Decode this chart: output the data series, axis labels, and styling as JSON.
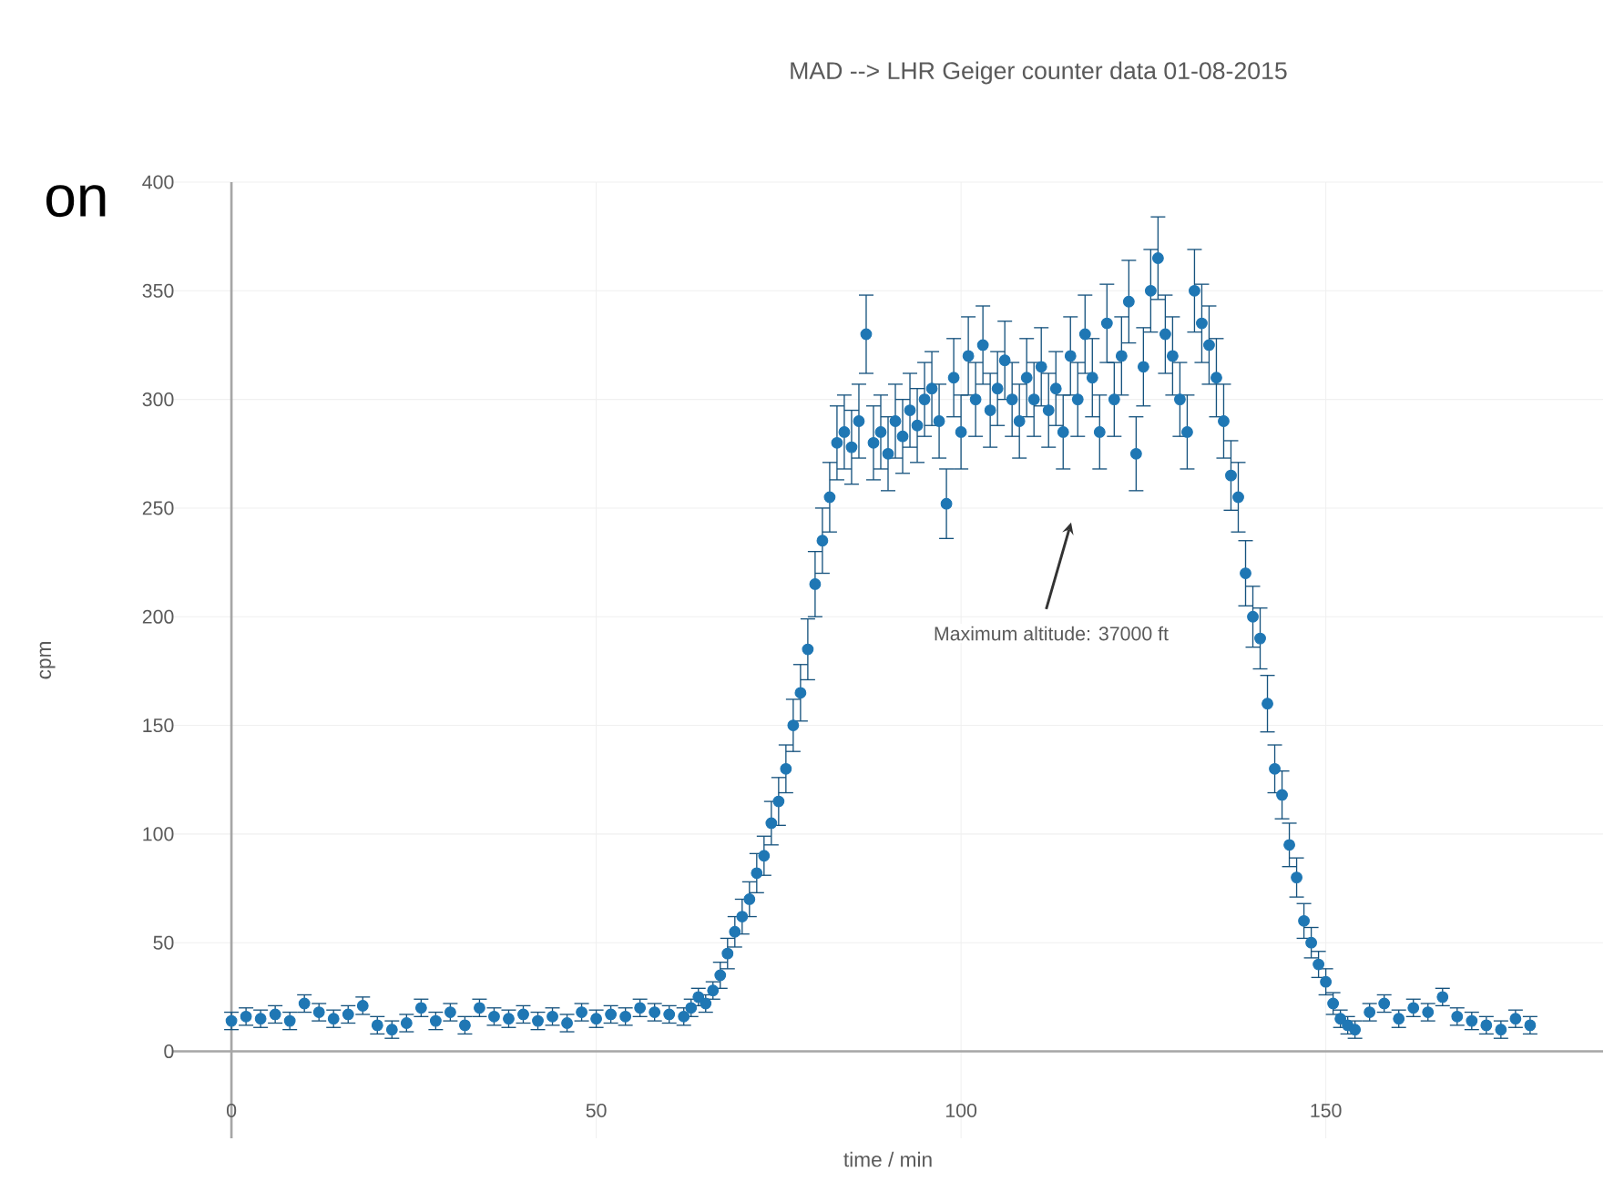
{
  "chart_data": {
    "type": "scatter",
    "title": "MAD --> LHR Geiger counter data 01-08-2015",
    "xlabel": "time / min",
    "ylabel": "cpm",
    "xlim": [
      -8,
      188
    ],
    "ylim": [
      -40,
      400
    ],
    "xticks": [
      0,
      50,
      100,
      150
    ],
    "yticks": [
      0,
      50,
      100,
      150,
      200,
      250,
      300,
      350,
      400
    ],
    "grid": true,
    "marker": "circle",
    "series": [
      {
        "color": "#1f77b4",
        "x": [
          0,
          2,
          4,
          6,
          8,
          10,
          12,
          14,
          16,
          18,
          20,
          22,
          24,
          26,
          28,
          30,
          32,
          34,
          36,
          38,
          40,
          42,
          44,
          46,
          48,
          50,
          52,
          54,
          56,
          58,
          60,
          62,
          63,
          64,
          65,
          66,
          67,
          68,
          69,
          70,
          71,
          72,
          73,
          74,
          75,
          76,
          77,
          78,
          79,
          80,
          81,
          82,
          83,
          84,
          85,
          86,
          87,
          88,
          89,
          90,
          91,
          92,
          93,
          94,
          95,
          96,
          97,
          98,
          99,
          100,
          101,
          102,
          103,
          104,
          105,
          106,
          107,
          108,
          109,
          110,
          111,
          112,
          113,
          114,
          115,
          116,
          117,
          118,
          119,
          120,
          121,
          122,
          123,
          124,
          125,
          126,
          127,
          128,
          129,
          130,
          131,
          132,
          133,
          134,
          135,
          136,
          137,
          138,
          139,
          140,
          141,
          142,
          143,
          144,
          145,
          146,
          147,
          148,
          149,
          150,
          151,
          152,
          153,
          154,
          156,
          158,
          160,
          162,
          164,
          166,
          168,
          170,
          172,
          174,
          176,
          178
        ],
        "values": [
          14,
          16,
          15,
          17,
          14,
          22,
          18,
          15,
          17,
          21,
          12,
          10,
          13,
          20,
          14,
          18,
          12,
          20,
          16,
          15,
          17,
          14,
          16,
          13,
          18,
          15,
          17,
          16,
          20,
          18,
          17,
          16,
          20,
          25,
          22,
          28,
          35,
          45,
          55,
          62,
          70,
          82,
          90,
          105,
          115,
          130,
          150,
          165,
          185,
          215,
          235,
          255,
          280,
          285,
          278,
          290,
          330,
          280,
          285,
          275,
          290,
          283,
          295,
          288,
          300,
          305,
          290,
          252,
          310,
          285,
          320,
          300,
          325,
          295,
          305,
          318,
          300,
          290,
          310,
          300,
          315,
          295,
          305,
          285,
          320,
          300,
          330,
          310,
          285,
          335,
          300,
          320,
          345,
          275,
          315,
          350,
          365,
          330,
          320,
          300,
          285,
          350,
          335,
          325,
          310,
          290,
          265,
          255,
          220,
          200,
          190,
          160,
          130,
          118,
          95,
          80,
          60,
          50,
          40,
          32,
          22,
          15,
          12,
          10,
          18,
          22,
          15,
          20,
          18,
          25,
          16,
          14,
          12,
          10,
          15,
          12
        ],
        "errors": [
          4,
          4,
          4,
          4,
          4,
          4,
          4,
          4,
          4,
          4,
          4,
          4,
          4,
          4,
          4,
          4,
          4,
          4,
          4,
          4,
          4,
          4,
          4,
          4,
          4,
          4,
          4,
          4,
          4,
          4,
          4,
          4,
          4,
          4,
          4,
          4,
          6,
          7,
          7,
          8,
          8,
          9,
          9,
          10,
          11,
          11,
          12,
          13,
          14,
          15,
          15,
          16,
          17,
          17,
          17,
          17,
          18,
          17,
          17,
          17,
          17,
          17,
          17,
          17,
          17,
          17,
          17,
          16,
          18,
          17,
          18,
          17,
          18,
          17,
          17,
          18,
          17,
          17,
          18,
          17,
          18,
          17,
          17,
          17,
          18,
          17,
          18,
          18,
          17,
          18,
          17,
          18,
          19,
          17,
          18,
          19,
          19,
          18,
          18,
          17,
          17,
          19,
          18,
          18,
          18,
          17,
          16,
          16,
          15,
          14,
          14,
          13,
          11,
          11,
          10,
          9,
          8,
          7,
          6,
          6,
          5,
          4,
          4,
          4,
          4,
          4,
          4,
          4,
          4,
          4,
          4,
          4,
          4,
          4,
          4,
          4
        ]
      }
    ],
    "annotations": [
      "Maximum altitude: 37000 ft",
      "on"
    ]
  }
}
